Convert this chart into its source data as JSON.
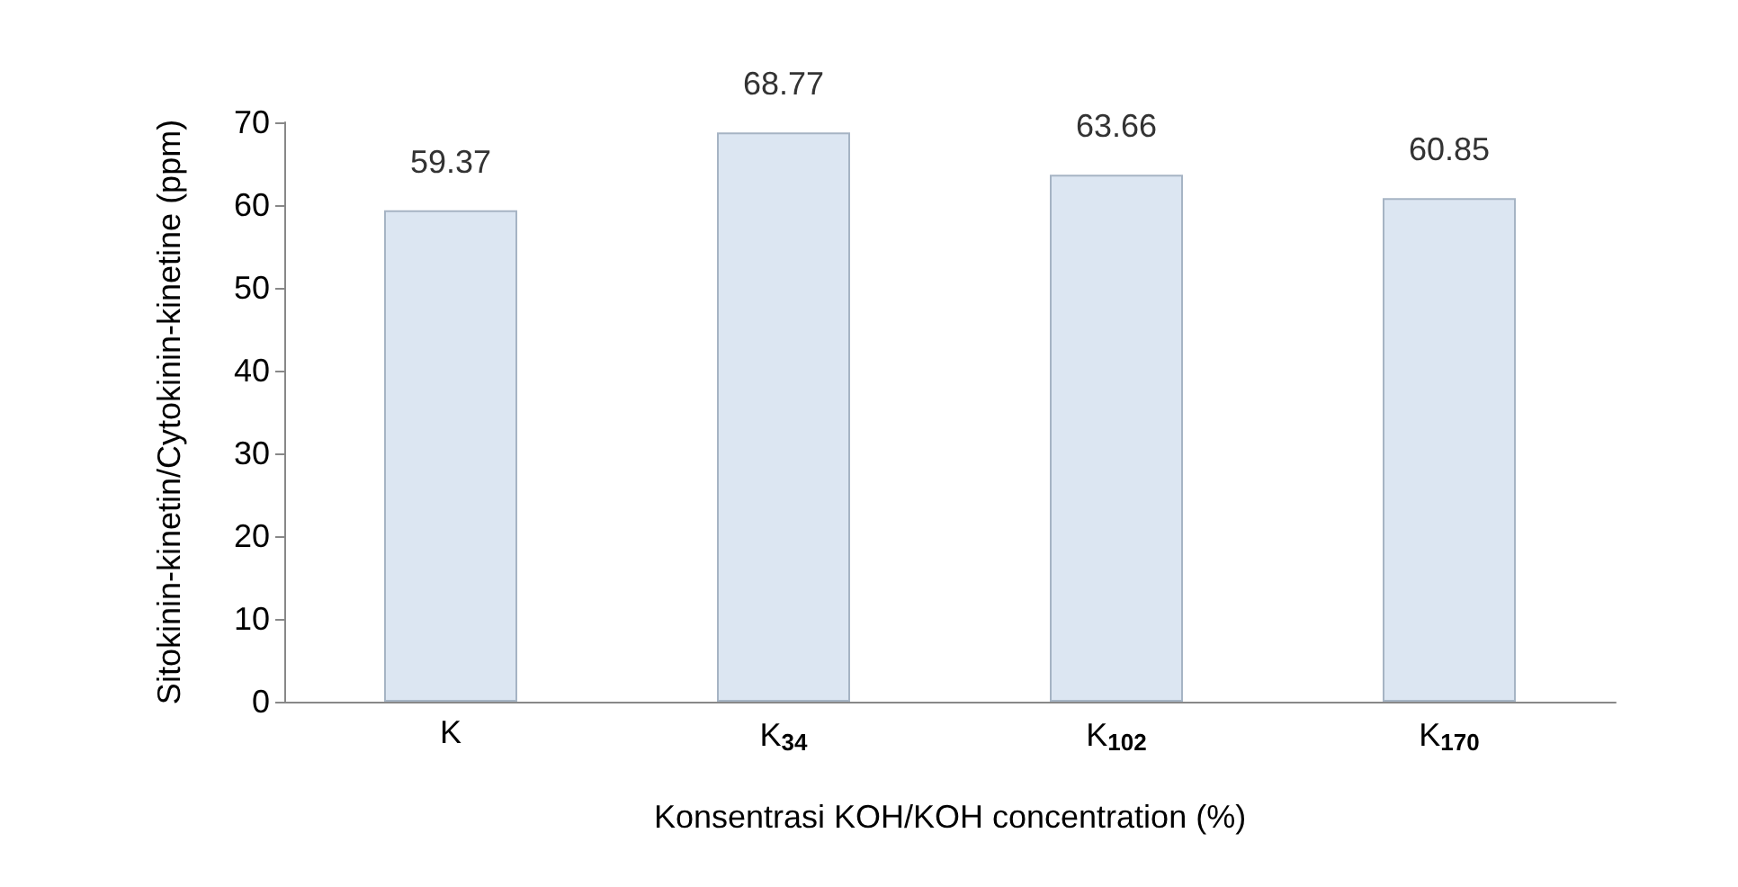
{
  "chart_data": {
    "type": "bar",
    "categories": [
      "K",
      "K$_{34}$",
      "K$_{102}$",
      "K$_{170}$"
    ],
    "values": [
      59.37,
      68.77,
      63.66,
      60.85
    ],
    "color": "#dce6f2",
    "data_labels": true,
    "ylim": [
      0,
      70
    ],
    "yticks": [
      0,
      10,
      20,
      30,
      40,
      50,
      60,
      70
    ],
    "grid": false,
    "xlabel": "Konsentrasi KOH/KOH concentration (%)",
    "ylabel": "Sitokinin-kinetin/Cytokinin-kinetine (ppm)"
  }
}
